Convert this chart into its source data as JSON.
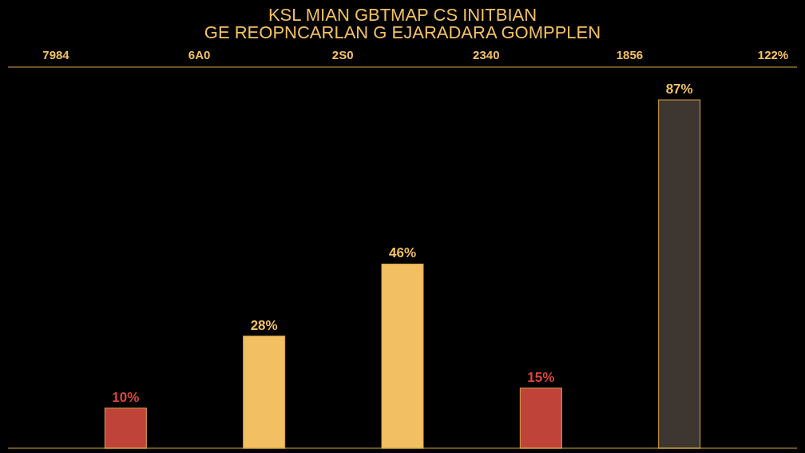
{
  "chart_data": {
    "type": "bar",
    "title": "KSL MIAN GBTMAP CS INITBIAN",
    "subtitle": "GE REOPNCARLAN G EJARADARA GOMPPLEN",
    "categories": [
      null,
      null,
      null,
      null,
      null
    ],
    "values": [
      10,
      28,
      46,
      15,
      87
    ],
    "colors": [
      "#c0433a",
      "#f2c063",
      "#f2c063",
      "#c0433a",
      "#3e3630"
    ],
    "value_labels": [
      "10%",
      "28%",
      "46%",
      "15%",
      "87%"
    ],
    "annotations": [
      "7984",
      "6A0",
      "2S0",
      "2340",
      "1856",
      "122%"
    ]
  }
}
